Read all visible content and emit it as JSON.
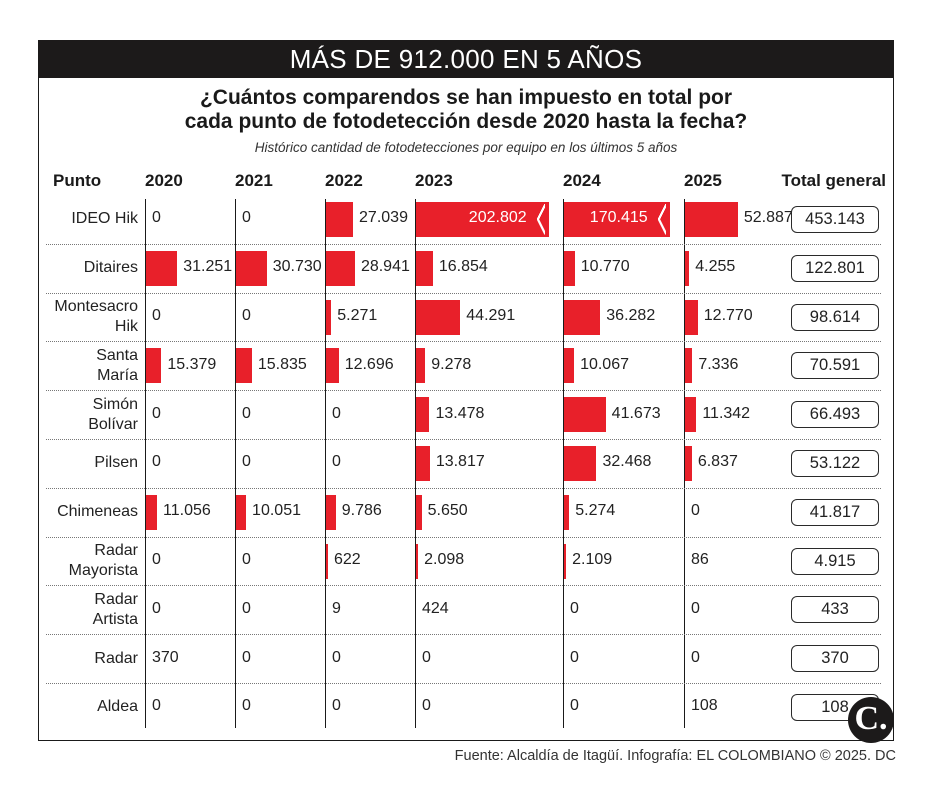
{
  "banner": "MÁS DE 912.000 EN 5 AÑOS",
  "question": [
    "¿Cuántos comparendos se han impuesto en total por",
    "cada punto de fotodetección desde 2020 hasta la fecha?"
  ],
  "subtitle": "Histórico cantidad de fotodetecciones por equipo en los últimos 5 años",
  "header": {
    "punto": "Punto",
    "total": "Total general"
  },
  "source": "Fuente: Alcaldía de Itagüí. Infografía: EL COLOMBIANO © 2025. DC",
  "logo": "C.",
  "colors": {
    "bar": "#e8202a",
    "banner": "#1c1a1a"
  },
  "chart_data": {
    "type": "table",
    "columns": [
      "2020",
      "2021",
      "2022",
      "2023",
      "2024",
      "2025"
    ],
    "rows": [
      {
        "label": [
          "IDEO Hik"
        ],
        "values": [
          0,
          0,
          27039,
          202802,
          170415,
          52887
        ],
        "display": [
          "0",
          "0",
          "27.039",
          "202.802",
          "170.415",
          "52.887"
        ],
        "total": "453.143"
      },
      {
        "label": [
          "Ditaires"
        ],
        "values": [
          31251,
          30730,
          28941,
          16854,
          10770,
          4255
        ],
        "display": [
          "31.251",
          "30.730",
          "28.941",
          "16.854",
          "10.770",
          "4.255"
        ],
        "total": "122.801"
      },
      {
        "label": [
          "Montesacro",
          "Hik"
        ],
        "values": [
          0,
          0,
          5271,
          44291,
          36282,
          12770
        ],
        "display": [
          "0",
          "0",
          "5.271",
          "44.291",
          "36.282",
          "12.770"
        ],
        "total": "98.614"
      },
      {
        "label": [
          "Santa",
          "María"
        ],
        "values": [
          15379,
          15835,
          12696,
          9278,
          10067,
          7336
        ],
        "display": [
          "15.379",
          "15.835",
          "12.696",
          "9.278",
          "10.067",
          "7.336"
        ],
        "total": "70.591"
      },
      {
        "label": [
          "Simón",
          "Bolívar"
        ],
        "values": [
          0,
          0,
          0,
          13478,
          41673,
          11342
        ],
        "display": [
          "0",
          "0",
          "0",
          "13.478",
          "41.673",
          "11.342"
        ],
        "total": "66.493"
      },
      {
        "label": [
          "Pilsen"
        ],
        "values": [
          0,
          0,
          0,
          13817,
          32468,
          6837
        ],
        "display": [
          "0",
          "0",
          "0",
          "13.817",
          "32.468",
          "6.837"
        ],
        "total": "53.122"
      },
      {
        "label": [
          "Chimeneas"
        ],
        "values": [
          11056,
          10051,
          9786,
          5650,
          5274,
          0
        ],
        "display": [
          "11.056",
          "10.051",
          "9.786",
          "5.650",
          "5.274",
          "0"
        ],
        "total": "41.817"
      },
      {
        "label": [
          "Radar",
          "Mayorista"
        ],
        "values": [
          0,
          0,
          622,
          2098,
          2109,
          86
        ],
        "display": [
          "0",
          "0",
          "622",
          "2.098",
          "2.109",
          "86"
        ],
        "total": "4.915"
      },
      {
        "label": [
          "Radar",
          "Artista"
        ],
        "values": [
          0,
          0,
          9,
          424,
          0,
          0
        ],
        "display": [
          "0",
          "0",
          "9",
          "424",
          "0",
          "0"
        ],
        "total": "433"
      },
      {
        "label": [
          "Radar"
        ],
        "values": [
          370,
          0,
          0,
          0,
          0,
          0
        ],
        "display": [
          "370",
          "0",
          "0",
          "0",
          "0",
          "0"
        ],
        "total": "370"
      },
      {
        "label": [
          "Aldea"
        ],
        "values": [
          0,
          0,
          0,
          0,
          0,
          108
        ],
        "display": [
          "0",
          "0",
          "0",
          "0",
          "0",
          "108"
        ],
        "total": "108"
      }
    ],
    "bar_scale_note_free": true
  }
}
